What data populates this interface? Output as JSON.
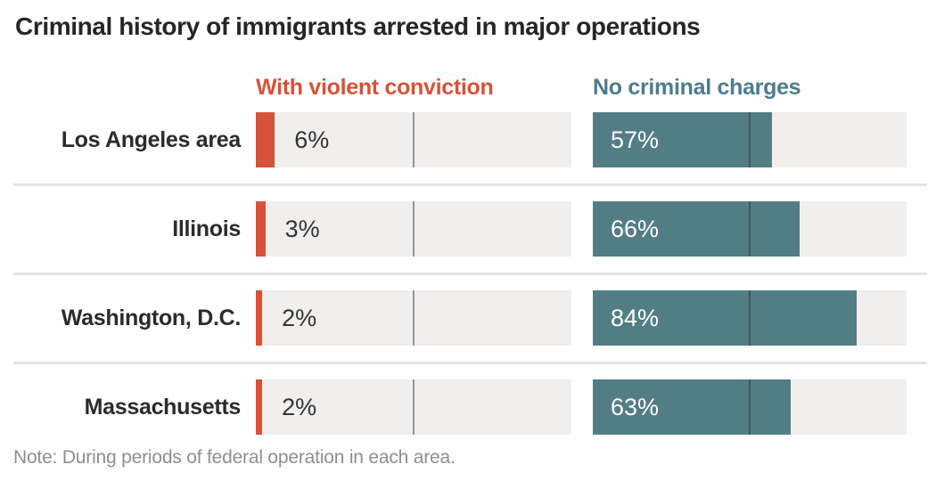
{
  "title": "Criminal history of immigrants arrested in major operations",
  "note": "Note: During periods of federal operation in each area.",
  "colors": {
    "violent_bar": "#d6523a",
    "no_charges_bar": "#537d85",
    "violent_legend_text": "#d6523a",
    "no_charges_legend_text": "#4e7d89",
    "track_background": "#f0efee",
    "row_separator": "#e4e4e3",
    "title_text": "#262626",
    "category_text": "#2b2b2b",
    "outside_value_text": "#333333",
    "inside_value_text": "#ffffff",
    "note_text": "#8f8f8f"
  },
  "chart_data": {
    "type": "bar",
    "orientation": "horizontal",
    "title": "Criminal history of immigrants arrested in major operations",
    "categories": [
      "Los Angeles area",
      "Illinois",
      "Washington, D.C.",
      "Massachusetts"
    ],
    "series": [
      {
        "name": "With violent conviction",
        "color": "#d6523a",
        "values": [
          6,
          3,
          2,
          2
        ],
        "labels": [
          "6%",
          "3%",
          "2%",
          "2%"
        ],
        "label_position": "outside-right"
      },
      {
        "name": "No criminal charges",
        "color": "#537d85",
        "values": [
          57,
          66,
          84,
          63
        ],
        "labels": [
          "57%",
          "66%",
          "84%",
          "63%"
        ],
        "label_position": "inside-left"
      }
    ],
    "xlim": [
      0,
      100
    ],
    "gridline_at": 50,
    "grid": true,
    "legend_position": "top",
    "note": "Note: During periods of federal operation in each area."
  }
}
